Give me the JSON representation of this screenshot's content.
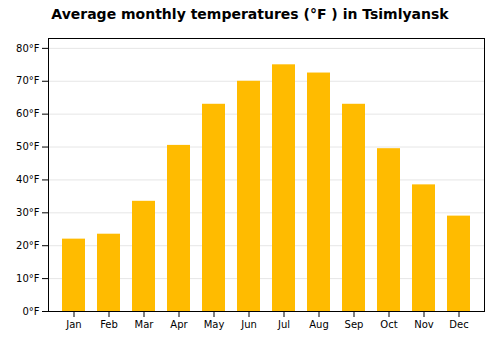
{
  "chart_data": {
    "type": "bar",
    "title": "Average monthly temperatures (°F ) in Tsimlyansk",
    "categories": [
      "Jan",
      "Feb",
      "Mar",
      "Apr",
      "May",
      "Jun",
      "Jul",
      "Aug",
      "Sep",
      "Oct",
      "Nov",
      "Dec"
    ],
    "values": [
      22,
      23.5,
      33.5,
      50.5,
      63,
      70,
      75,
      72.5,
      63,
      49.5,
      38.5,
      29
    ],
    "color": "#FFBB00",
    "ylim": [
      0,
      83
    ],
    "yticks": [
      {
        "value": 0,
        "label": "0°F"
      },
      {
        "value": 10,
        "label": "10°F"
      },
      {
        "value": 20,
        "label": "20°F"
      },
      {
        "value": 30,
        "label": "30°F"
      },
      {
        "value": 40,
        "label": "40°F"
      },
      {
        "value": 50,
        "label": "50°F"
      },
      {
        "value": 60,
        "label": "60°F"
      },
      {
        "value": 70,
        "label": "70°F"
      },
      {
        "value": 80,
        "label": "80°F"
      }
    ],
    "grid": true
  }
}
